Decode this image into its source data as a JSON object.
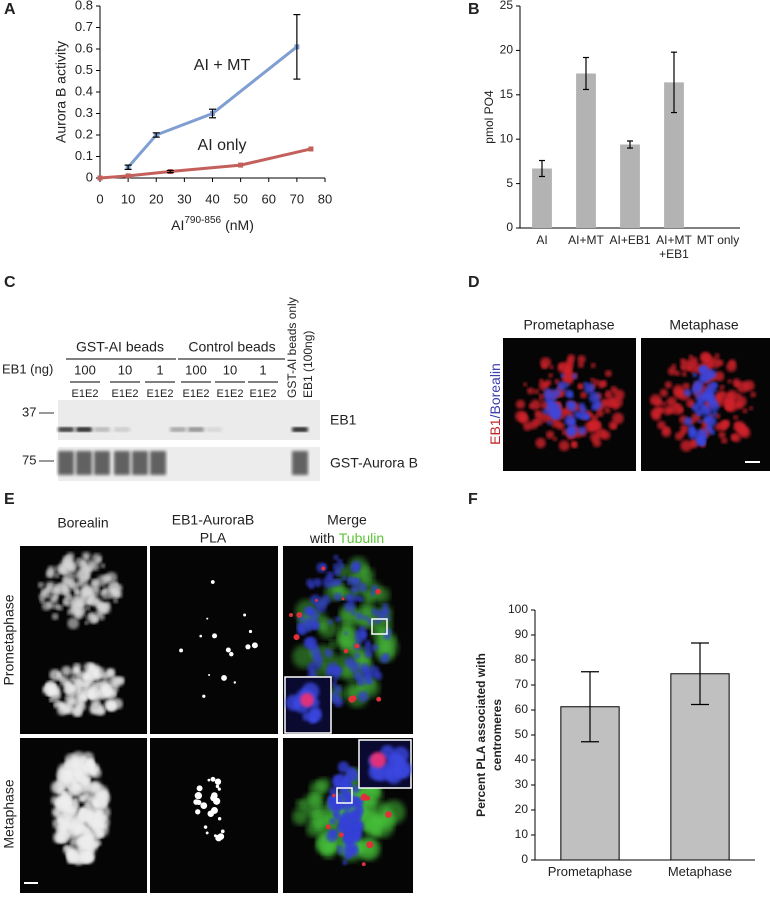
{
  "panel_labels": [
    "A",
    "B",
    "C",
    "D",
    "E",
    "F"
  ],
  "chart_data": [
    {
      "type": "line",
      "ylabel": "Aurora B activity",
      "xlabel_parts": [
        "AI",
        "790-856",
        "(nM)"
      ],
      "xlim": [
        0,
        80
      ],
      "xticks": [
        0,
        10,
        20,
        30,
        40,
        50,
        60,
        70,
        80
      ],
      "ylim": [
        0,
        0.8
      ],
      "yticks": [
        0,
        0.1,
        0.2,
        0.3,
        0.4,
        0.5,
        0.6,
        0.7,
        0.8
      ],
      "series": [
        {
          "name": "AI + MT",
          "color": "#7f9fd2",
          "x": [
            10,
            20,
            40,
            70
          ],
          "values": [
            0.05,
            0.2,
            0.3,
            0.61
          ],
          "errors": [
            0.01,
            0.01,
            0.02,
            0.15
          ]
        },
        {
          "name": "AI only",
          "color": "#c4605c",
          "x": [
            0,
            10,
            25,
            50,
            75
          ],
          "values": [
            0,
            0.01,
            0.03,
            0.06,
            0.135
          ],
          "errors": [
            null,
            null,
            0.005,
            null,
            null
          ]
        }
      ]
    },
    {
      "type": "bar",
      "ylabel": "pmol PO4",
      "categories": [
        "AI",
        "AI+MT",
        "AI+EB1",
        "AI+MT +EB1",
        "MT only"
      ],
      "values": [
        6.7,
        17.4,
        9.4,
        16.4,
        0
      ],
      "errors": [
        0.9,
        1.8,
        0.4,
        3.4,
        null
      ],
      "color": "#b3b3b3",
      "ylim": [
        0,
        25
      ],
      "yticks": [
        0,
        5,
        10,
        15,
        20,
        25
      ]
    },
    {
      "type": "bar",
      "ylabel": [
        "Percent PLA associated with",
        "centromeres"
      ],
      "categories": [
        "Prometaphase",
        "Metaphase"
      ],
      "values": [
        61.3,
        74.5
      ],
      "errors": [
        14,
        12.3
      ],
      "color": "#c0c0c0",
      "ylim": [
        0,
        100
      ],
      "yticks": [
        0,
        10,
        20,
        30,
        40,
        50,
        60,
        70,
        80,
        90,
        100
      ]
    }
  ],
  "blot": {
    "group_labels": [
      "GST-AI beads",
      "Control beads"
    ],
    "row_label": "EB1 (ng)",
    "amounts": [
      100,
      10,
      1,
      100,
      10,
      1
    ],
    "fractions": [
      "E1E2",
      "E1E2",
      "E1E2",
      "E1E2",
      "E1E2",
      "E1E2"
    ],
    "lane_labels": [
      "GST-AI beads only",
      "EB1 (100ng)"
    ],
    "markers": [
      37,
      75
    ],
    "band_labels": [
      "EB1",
      "GST-Aurora B"
    ]
  },
  "immunofluorescence": {
    "stages": [
      "Prometaphase",
      "Metaphase"
    ],
    "label_parts": [
      "EB1",
      "/Borealin"
    ]
  },
  "pla": {
    "columns": [
      "Borealin",
      [
        "EB1-AuroraB",
        "PLA"
      ],
      [
        "Merge",
        "with",
        "Tubulin"
      ]
    ],
    "rows": [
      "Prometaphase",
      "Metaphase"
    ]
  }
}
